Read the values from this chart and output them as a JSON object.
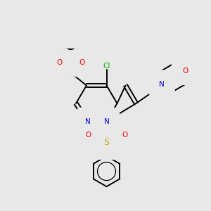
{
  "background_color": "#e8e8e8",
  "bond_color": "#000000",
  "N_color": "#0000ee",
  "O_color": "#ee0000",
  "S_color": "#ccaa00",
  "Cl_color": "#00aa00",
  "figsize": [
    3.0,
    3.0
  ],
  "dpi": 100,
  "xlim": [
    0,
    10
  ],
  "ylim": [
    0,
    10
  ]
}
